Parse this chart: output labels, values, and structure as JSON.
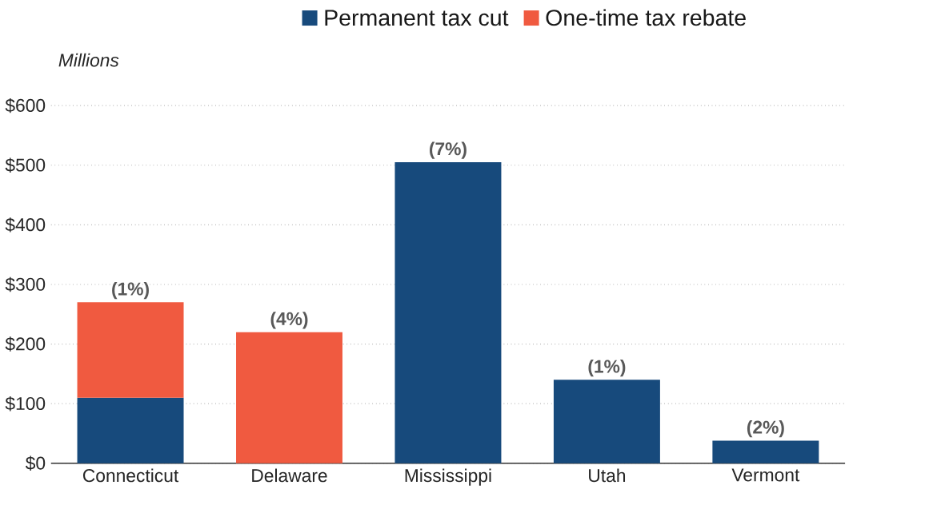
{
  "chart_data": {
    "type": "bar",
    "stacked": true,
    "ylabel": "Millions",
    "categories": [
      "Connecticut",
      "Delaware",
      "Mississippi",
      "Utah",
      "Vermont"
    ],
    "series": [
      {
        "name": "Permanent tax cut",
        "color": "#174a7c",
        "values": [
          110,
          null,
          505,
          140,
          38
        ]
      },
      {
        "name": "One-time tax rebate",
        "color": "#f05a40",
        "values": [
          160,
          220,
          null,
          null,
          null
        ]
      }
    ],
    "annotations": [
      {
        "text": "(1%)",
        "x": "Connecticut",
        "y": 270
      },
      {
        "text": "(4%)",
        "x": "Delaware",
        "y": 220
      },
      {
        "text": "(7%)",
        "x": "Mississippi",
        "y": 505
      },
      {
        "text": "(1%)",
        "x": "Utah",
        "y": 140
      },
      {
        "text": "(2%)",
        "x": "Vermont",
        "y": 38
      }
    ],
    "ylim": [
      0,
      600
    ],
    "yticks": [
      {
        "value": 0,
        "label": "$0"
      },
      {
        "value": 100,
        "label": "$100"
      },
      {
        "value": 200,
        "label": "$200"
      },
      {
        "value": 300,
        "label": "$300"
      },
      {
        "value": 400,
        "label": "$400"
      },
      {
        "value": 500,
        "label": "$500"
      },
      {
        "value": 600,
        "label": "$600"
      }
    ],
    "grid": "y",
    "legend": "top"
  }
}
